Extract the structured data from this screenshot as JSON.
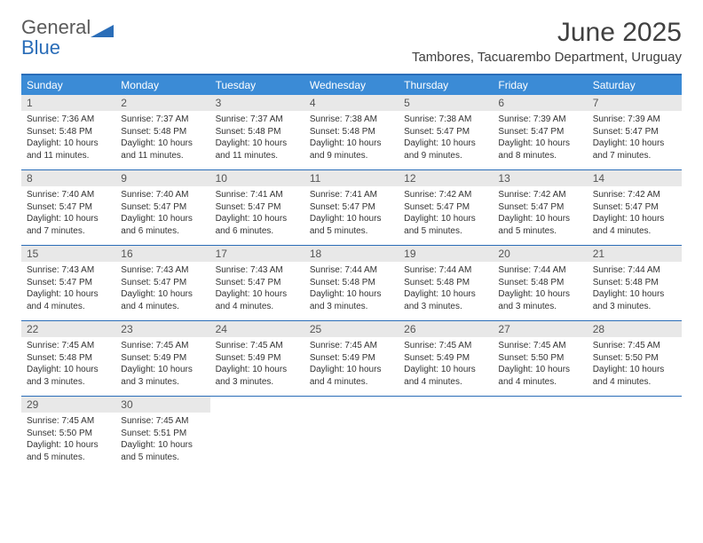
{
  "logo": {
    "text1": "General",
    "text2": "Blue"
  },
  "title": "June 2025",
  "location": "Tambores, Tacuarembo Department, Uruguay",
  "colors": {
    "header_bar": "#3b8bd6",
    "border": "#2a6db8",
    "daynum_bg": "#e8e8e8",
    "text": "#333333",
    "title_text": "#404040"
  },
  "weekdays": [
    "Sunday",
    "Monday",
    "Tuesday",
    "Wednesday",
    "Thursday",
    "Friday",
    "Saturday"
  ],
  "weeks": [
    [
      {
        "n": "1",
        "sr": "7:36 AM",
        "ss": "5:48 PM",
        "dl": "10 hours and 11 minutes."
      },
      {
        "n": "2",
        "sr": "7:37 AM",
        "ss": "5:48 PM",
        "dl": "10 hours and 11 minutes."
      },
      {
        "n": "3",
        "sr": "7:37 AM",
        "ss": "5:48 PM",
        "dl": "10 hours and 11 minutes."
      },
      {
        "n": "4",
        "sr": "7:38 AM",
        "ss": "5:48 PM",
        "dl": "10 hours and 9 minutes."
      },
      {
        "n": "5",
        "sr": "7:38 AM",
        "ss": "5:47 PM",
        "dl": "10 hours and 9 minutes."
      },
      {
        "n": "6",
        "sr": "7:39 AM",
        "ss": "5:47 PM",
        "dl": "10 hours and 8 minutes."
      },
      {
        "n": "7",
        "sr": "7:39 AM",
        "ss": "5:47 PM",
        "dl": "10 hours and 7 minutes."
      }
    ],
    [
      {
        "n": "8",
        "sr": "7:40 AM",
        "ss": "5:47 PM",
        "dl": "10 hours and 7 minutes."
      },
      {
        "n": "9",
        "sr": "7:40 AM",
        "ss": "5:47 PM",
        "dl": "10 hours and 6 minutes."
      },
      {
        "n": "10",
        "sr": "7:41 AM",
        "ss": "5:47 PM",
        "dl": "10 hours and 6 minutes."
      },
      {
        "n": "11",
        "sr": "7:41 AM",
        "ss": "5:47 PM",
        "dl": "10 hours and 5 minutes."
      },
      {
        "n": "12",
        "sr": "7:42 AM",
        "ss": "5:47 PM",
        "dl": "10 hours and 5 minutes."
      },
      {
        "n": "13",
        "sr": "7:42 AM",
        "ss": "5:47 PM",
        "dl": "10 hours and 5 minutes."
      },
      {
        "n": "14",
        "sr": "7:42 AM",
        "ss": "5:47 PM",
        "dl": "10 hours and 4 minutes."
      }
    ],
    [
      {
        "n": "15",
        "sr": "7:43 AM",
        "ss": "5:47 PM",
        "dl": "10 hours and 4 minutes."
      },
      {
        "n": "16",
        "sr": "7:43 AM",
        "ss": "5:47 PM",
        "dl": "10 hours and 4 minutes."
      },
      {
        "n": "17",
        "sr": "7:43 AM",
        "ss": "5:47 PM",
        "dl": "10 hours and 4 minutes."
      },
      {
        "n": "18",
        "sr": "7:44 AM",
        "ss": "5:48 PM",
        "dl": "10 hours and 3 minutes."
      },
      {
        "n": "19",
        "sr": "7:44 AM",
        "ss": "5:48 PM",
        "dl": "10 hours and 3 minutes."
      },
      {
        "n": "20",
        "sr": "7:44 AM",
        "ss": "5:48 PM",
        "dl": "10 hours and 3 minutes."
      },
      {
        "n": "21",
        "sr": "7:44 AM",
        "ss": "5:48 PM",
        "dl": "10 hours and 3 minutes."
      }
    ],
    [
      {
        "n": "22",
        "sr": "7:45 AM",
        "ss": "5:48 PM",
        "dl": "10 hours and 3 minutes."
      },
      {
        "n": "23",
        "sr": "7:45 AM",
        "ss": "5:49 PM",
        "dl": "10 hours and 3 minutes."
      },
      {
        "n": "24",
        "sr": "7:45 AM",
        "ss": "5:49 PM",
        "dl": "10 hours and 3 minutes."
      },
      {
        "n": "25",
        "sr": "7:45 AM",
        "ss": "5:49 PM",
        "dl": "10 hours and 4 minutes."
      },
      {
        "n": "26",
        "sr": "7:45 AM",
        "ss": "5:49 PM",
        "dl": "10 hours and 4 minutes."
      },
      {
        "n": "27",
        "sr": "7:45 AM",
        "ss": "5:50 PM",
        "dl": "10 hours and 4 minutes."
      },
      {
        "n": "28",
        "sr": "7:45 AM",
        "ss": "5:50 PM",
        "dl": "10 hours and 4 minutes."
      }
    ],
    [
      {
        "n": "29",
        "sr": "7:45 AM",
        "ss": "5:50 PM",
        "dl": "10 hours and 5 minutes."
      },
      {
        "n": "30",
        "sr": "7:45 AM",
        "ss": "5:51 PM",
        "dl": "10 hours and 5 minutes."
      },
      null,
      null,
      null,
      null,
      null
    ]
  ],
  "labels": {
    "sunrise": "Sunrise: ",
    "sunset": "Sunset: ",
    "daylight": "Daylight: "
  }
}
